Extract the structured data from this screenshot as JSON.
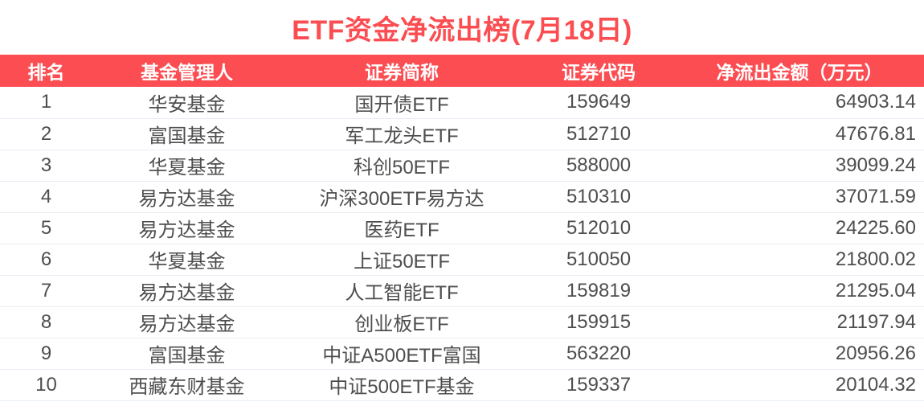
{
  "colors": {
    "accent_red": "#fb4d52",
    "header_text": "#ffffff",
    "cell_text": "#4e4e4e",
    "row_separator": "#e9edf4",
    "background": "#ffffff"
  },
  "chart_data": {
    "type": "table",
    "title": "ETF资金净流出榜(7月18日)",
    "columns": [
      {
        "key": "rank",
        "label": "排名"
      },
      {
        "key": "manager",
        "label": "基金管理人"
      },
      {
        "key": "short_name",
        "label": "证券简称"
      },
      {
        "key": "code",
        "label": "证券代码"
      },
      {
        "key": "net_outflow",
        "label": "净流出金额（万元）"
      }
    ],
    "rows": [
      {
        "rank": "1",
        "manager": "华安基金",
        "short_name": "国开债ETF",
        "code": "159649",
        "net_outflow": "64903.14"
      },
      {
        "rank": "2",
        "manager": "富国基金",
        "short_name": "军工龙头ETF",
        "code": "512710",
        "net_outflow": "47676.81"
      },
      {
        "rank": "3",
        "manager": "华夏基金",
        "short_name": "科创50ETF",
        "code": "588000",
        "net_outflow": "39099.24"
      },
      {
        "rank": "4",
        "manager": "易方达基金",
        "short_name": "沪深300ETF易方达",
        "code": "510310",
        "net_outflow": "37071.59"
      },
      {
        "rank": "5",
        "manager": "易方达基金",
        "short_name": "医药ETF",
        "code": "512010",
        "net_outflow": "24225.60"
      },
      {
        "rank": "6",
        "manager": "华夏基金",
        "short_name": "上证50ETF",
        "code": "510050",
        "net_outflow": "21800.02"
      },
      {
        "rank": "7",
        "manager": "易方达基金",
        "short_name": "人工智能ETF",
        "code": "159819",
        "net_outflow": "21295.04"
      },
      {
        "rank": "8",
        "manager": "易方达基金",
        "short_name": "创业板ETF",
        "code": "159915",
        "net_outflow": "21197.94"
      },
      {
        "rank": "9",
        "manager": "富国基金",
        "short_name": "中证A500ETF富国",
        "code": "563220",
        "net_outflow": "20956.26"
      },
      {
        "rank": "10",
        "manager": "西藏东财基金",
        "short_name": "中证500ETF基金",
        "code": "159337",
        "net_outflow": "20104.32"
      }
    ]
  }
}
